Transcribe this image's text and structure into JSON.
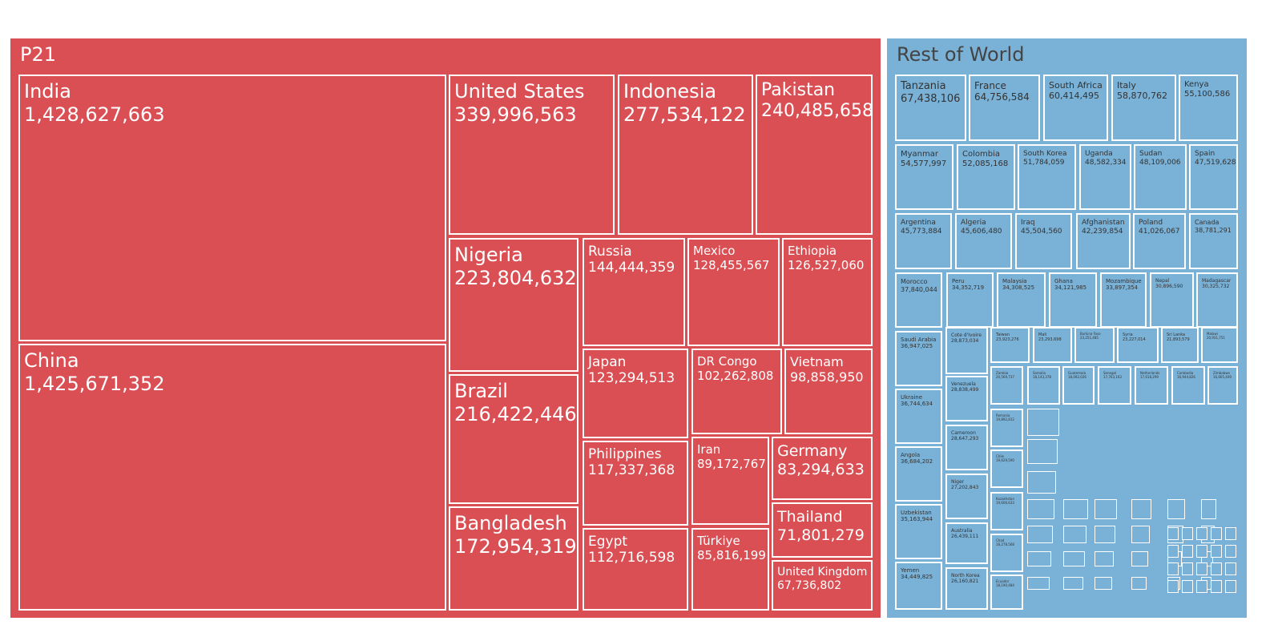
{
  "chart_data": {
    "type": "treemap",
    "colors": {
      "P21": "#DA4F54",
      "Rest of World": "#7AB1D6",
      "tile_border": "#ffffff"
    },
    "groups": [
      {
        "name": "P21",
        "items": [
          {
            "label": "India",
            "value": 1428627663
          },
          {
            "label": "China",
            "value": 1425671352
          },
          {
            "label": "United States",
            "value": 339996563
          },
          {
            "label": "Indonesia",
            "value": 277534122
          },
          {
            "label": "Pakistan",
            "value": 240485658
          },
          {
            "label": "Nigeria",
            "value": 223804632
          },
          {
            "label": "Brazil",
            "value": 216422446
          },
          {
            "label": "Bangladesh",
            "value": 172954319
          },
          {
            "label": "Russia",
            "value": 144444359
          },
          {
            "label": "Mexico",
            "value": 128455567
          },
          {
            "label": "Ethiopia",
            "value": 126527060
          },
          {
            "label": "Japan",
            "value": 123294513
          },
          {
            "label": "DR Congo",
            "value": 102262808
          },
          {
            "label": "Vietnam",
            "value": 98858950
          },
          {
            "label": "Philippines",
            "value": 117337368
          },
          {
            "label": "Iran",
            "value": 89172767
          },
          {
            "label": "Germany",
            "value": 83294633
          },
          {
            "label": "Thailand",
            "value": 71801279
          },
          {
            "label": "Egypt",
            "value": 112716598
          },
          {
            "label": "Türkiye",
            "value": 85816199
          },
          {
            "label": "United Kingdom",
            "value": 67736802
          }
        ]
      },
      {
        "name": "Rest of World",
        "items": [
          {
            "label": "Tanzania",
            "value": 67438106
          },
          {
            "label": "France",
            "value": 64756584
          },
          {
            "label": "South Africa",
            "value": 60414495
          },
          {
            "label": "Italy",
            "value": 58870762
          },
          {
            "label": "Kenya",
            "value": 55100586
          },
          {
            "label": "Myanmar",
            "value": 54577997
          },
          {
            "label": "Colombia",
            "value": 52085168
          },
          {
            "label": "South Korea",
            "value": 51784059
          },
          {
            "label": "Uganda",
            "value": 48582334
          },
          {
            "label": "Sudan",
            "value": 48109006
          },
          {
            "label": "Spain",
            "value": 47519628
          },
          {
            "label": "Argentina",
            "value": 45773884
          },
          {
            "label": "Algeria",
            "value": 45606480
          },
          {
            "label": "Iraq",
            "value": 45504560
          },
          {
            "label": "Afghanistan",
            "value": 42239854
          },
          {
            "label": "Poland",
            "value": 41026067
          },
          {
            "label": "Canada",
            "value": 38781291
          },
          {
            "label": "Morocco",
            "value": 37840044
          },
          {
            "label": "Peru",
            "value": 34352719
          },
          {
            "label": "Malaysia",
            "value": 34308525
          },
          {
            "label": "Ghana",
            "value": 34121985
          },
          {
            "label": "Mozambique",
            "value": 33897354
          },
          {
            "label": "Nepal",
            "value": 30896590
          },
          {
            "label": "Madagascar",
            "value": 30325732
          },
          {
            "label": "Saudi Arabia",
            "value": 36947025
          },
          {
            "label": "Ukraine",
            "value": 36744634
          },
          {
            "label": "Angola",
            "value": 36684202
          },
          {
            "label": "Uzbekistan",
            "value": 35163944
          },
          {
            "label": "Yemen",
            "value": 34449825
          },
          {
            "label": "Cote d'Ivoire",
            "value": 28873034
          },
          {
            "label": "Venezuela",
            "value": 28838499
          },
          {
            "label": "Cameroon",
            "value": 28647293
          },
          {
            "label": "Niger",
            "value": 27202843
          },
          {
            "label": "Australia",
            "value": 26439111
          },
          {
            "label": "North Korea",
            "value": 26160821
          },
          {
            "label": "Taiwan",
            "value": 23923276
          },
          {
            "label": "Mali",
            "value": 23293698
          },
          {
            "label": "Burkina Faso",
            "value": 23251485
          },
          {
            "label": "Syria",
            "value": 23227014
          },
          {
            "label": "Sri Lanka",
            "value": 21893579
          },
          {
            "label": "Malawi",
            "value": 20931751
          },
          {
            "label": "Zambia",
            "value": 20569737
          },
          {
            "label": "Somalia",
            "value": 18143378
          },
          {
            "label": "Guatemala",
            "value": 18092026
          },
          {
            "label": "Senegal",
            "value": 17763163
          },
          {
            "label": "Netherlands",
            "value": 17618299
          },
          {
            "label": "Cambodia",
            "value": 16944826
          },
          {
            "label": "Zimbabwe",
            "value": 16665409
          },
          {
            "label": "Romania",
            "value": 19892812
          },
          {
            "label": "Chile",
            "value": 19629590
          },
          {
            "label": "Kazakhstan",
            "value": 19606633
          },
          {
            "label": "Chad",
            "value": 18278568
          },
          {
            "label": "Ecuador",
            "value": 18190484
          }
        ]
      }
    ]
  }
}
